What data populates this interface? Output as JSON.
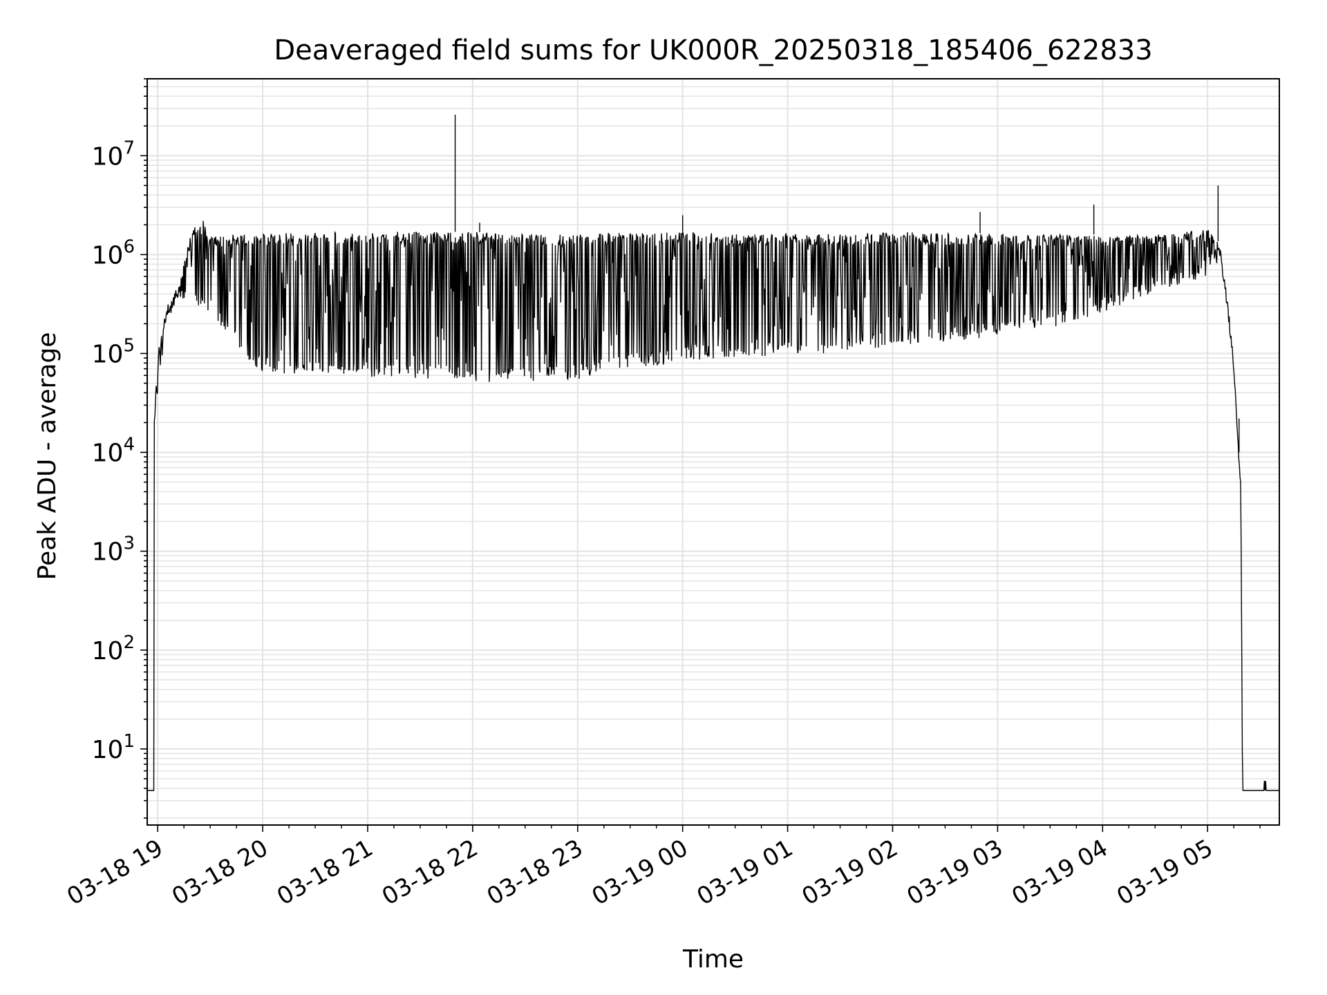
{
  "chart_data": {
    "type": "line",
    "title": "Deaveraged field sums for UK000R_20250318_185406_622833",
    "xlabel": "Time",
    "ylabel": "Peak ADU - average",
    "yscale": "log",
    "ylim": [
      1.7,
      60000000
    ],
    "xlim": [
      "2025-03-18 18:54",
      "2025-03-19 05:41"
    ],
    "grid": true,
    "x_ticks": [
      {
        "t": "2025-03-18 19:00",
        "label": "03-18 19"
      },
      {
        "t": "2025-03-18 20:00",
        "label": "03-18 20"
      },
      {
        "t": "2025-03-18 21:00",
        "label": "03-18 21"
      },
      {
        "t": "2025-03-18 22:00",
        "label": "03-18 22"
      },
      {
        "t": "2025-03-18 23:00",
        "label": "03-18 23"
      },
      {
        "t": "2025-03-19 00:00",
        "label": "03-19 00"
      },
      {
        "t": "2025-03-19 01:00",
        "label": "03-19 01"
      },
      {
        "t": "2025-03-19 02:00",
        "label": "03-19 02"
      },
      {
        "t": "2025-03-19 03:00",
        "label": "03-19 03"
      },
      {
        "t": "2025-03-19 04:00",
        "label": "03-19 04"
      },
      {
        "t": "2025-03-19 05:00",
        "label": "03-19 05"
      }
    ],
    "y_ticks": [
      {
        "value": 10,
        "base": "10",
        "exp": "1"
      },
      {
        "value": 100,
        "base": "10",
        "exp": "2"
      },
      {
        "value": 1000,
        "base": "10",
        "exp": "3"
      },
      {
        "value": 10000,
        "base": "10",
        "exp": "4"
      },
      {
        "value": 100000,
        "base": "10",
        "exp": "5"
      },
      {
        "value": 1000000,
        "base": "10",
        "exp": "6"
      },
      {
        "value": 10000000,
        "base": "10",
        "exp": "7"
      }
    ],
    "series": [
      {
        "color": "#000000",
        "baseline": 3.8,
        "peak_envelope": [
          [
            "2025-03-18 18:54",
            3.8
          ],
          [
            "2025-03-18 18:57",
            3.8
          ],
          [
            "2025-03-18 18:58",
            20000
          ],
          [
            "2025-03-18 19:00",
            100000
          ],
          [
            "2025-03-18 19:05",
            300000
          ],
          [
            "2025-03-18 19:12",
            500000
          ],
          [
            "2025-03-18 19:20",
            2000000
          ],
          [
            "2025-03-18 19:26",
            2200000
          ],
          [
            "2025-03-18 19:30",
            1500000
          ],
          [
            "2025-03-18 19:45",
            1600000
          ],
          [
            "2025-03-18 20:00",
            1600000
          ],
          [
            "2025-03-18 20:30",
            1700000
          ],
          [
            "2025-03-18 21:00",
            1700000
          ],
          [
            "2025-03-18 21:30",
            1700000
          ],
          [
            "2025-03-18 21:50",
            1700000
          ],
          [
            "2025-03-18 22:00",
            1700000
          ],
          [
            "2025-03-18 22:30",
            1600000
          ],
          [
            "2025-03-18 23:00",
            1600000
          ],
          [
            "2025-03-18 23:30",
            1700000
          ],
          [
            "2025-03-19 00:00",
            1700000
          ],
          [
            "2025-03-19 00:30",
            1600000
          ],
          [
            "2025-03-19 01:00",
            1650000
          ],
          [
            "2025-03-19 01:30",
            1600000
          ],
          [
            "2025-03-19 02:00",
            1700000
          ],
          [
            "2025-03-19 02:30",
            1650000
          ],
          [
            "2025-03-19 03:00",
            1650000
          ],
          [
            "2025-03-19 03:30",
            1600000
          ],
          [
            "2025-03-19 04:00",
            1600000
          ],
          [
            "2025-03-19 04:30",
            1600000
          ],
          [
            "2025-03-19 05:00",
            1800000
          ],
          [
            "2025-03-19 05:07",
            1300000
          ],
          [
            "2025-03-19 05:12",
            300000
          ],
          [
            "2025-03-19 05:15",
            80000
          ],
          [
            "2025-03-19 05:18",
            10000
          ],
          [
            "2025-03-19 05:19",
            5000
          ],
          [
            "2025-03-19 05:20",
            3.8
          ],
          [
            "2025-03-19 05:41",
            3.8
          ]
        ],
        "floor_envelope": [
          [
            "2025-03-18 18:54",
            3.8
          ],
          [
            "2025-03-18 18:57",
            3.8
          ],
          [
            "2025-03-18 18:58",
            20000
          ],
          [
            "2025-03-18 19:00",
            40000
          ],
          [
            "2025-03-18 19:05",
            200000
          ],
          [
            "2025-03-18 19:12",
            350000
          ],
          [
            "2025-03-18 19:20",
            300000
          ],
          [
            "2025-03-18 19:30",
            220000
          ],
          [
            "2025-03-18 19:40",
            150000
          ],
          [
            "2025-03-18 19:50",
            90000
          ],
          [
            "2025-03-18 20:00",
            65000
          ],
          [
            "2025-03-18 20:30",
            58000
          ],
          [
            "2025-03-18 21:00",
            58000
          ],
          [
            "2025-03-18 21:30",
            56000
          ],
          [
            "2025-03-18 22:00",
            52000
          ],
          [
            "2025-03-18 22:30",
            50000
          ],
          [
            "2025-03-18 23:00",
            55000
          ],
          [
            "2025-03-18 23:30",
            70000
          ],
          [
            "2025-03-19 00:00",
            80000
          ],
          [
            "2025-03-19 00:30",
            90000
          ],
          [
            "2025-03-19 01:00",
            95000
          ],
          [
            "2025-03-19 01:30",
            100000
          ],
          [
            "2025-03-19 02:00",
            120000
          ],
          [
            "2025-03-19 02:30",
            130000
          ],
          [
            "2025-03-19 03:00",
            150000
          ],
          [
            "2025-03-19 03:30",
            180000
          ],
          [
            "2025-03-19 04:00",
            260000
          ],
          [
            "2025-03-19 04:30",
            420000
          ],
          [
            "2025-03-19 05:00",
            600000
          ],
          [
            "2025-03-19 05:07",
            900000
          ],
          [
            "2025-03-19 05:12",
            200000
          ],
          [
            "2025-03-19 05:15",
            60000
          ],
          [
            "2025-03-19 05:18",
            8000
          ],
          [
            "2025-03-19 05:19",
            4500
          ],
          [
            "2025-03-19 05:20",
            3.8
          ],
          [
            "2025-03-19 05:41",
            3.8
          ]
        ],
        "notable_spikes": [
          [
            "2025-03-18 21:50",
            26000000
          ],
          [
            "2025-03-18 19:26",
            2200000
          ],
          [
            "2025-03-18 22:04",
            2100000
          ],
          [
            "2025-03-19 00:00",
            2500000
          ],
          [
            "2025-03-19 02:50",
            2700000
          ],
          [
            "2025-03-19 03:55",
            3200000
          ],
          [
            "2025-03-19 05:06",
            5000000
          ],
          [
            "2025-03-19 05:18",
            22000
          ]
        ]
      }
    ]
  }
}
